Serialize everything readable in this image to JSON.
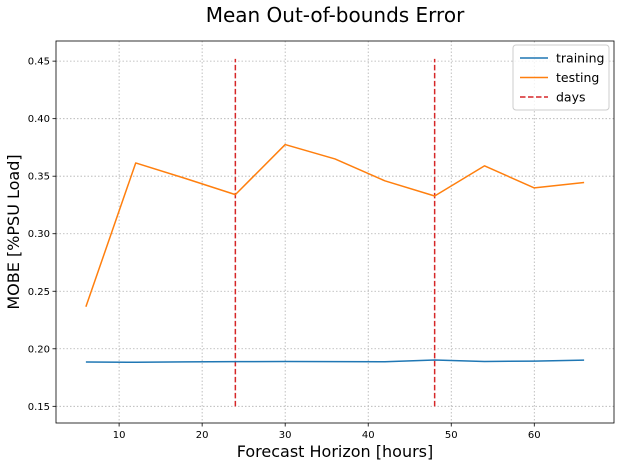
{
  "chart_data": {
    "type": "line",
    "title": "Mean Out-of-bounds Error",
    "xlabel": "Forecast Horizon [hours]",
    "ylabel": "MOBE [%PSU Load]",
    "xlim": [
      2.4,
      69.6
    ],
    "ylim": [
      0.1355,
      0.4675
    ],
    "xticks": [
      10,
      20,
      30,
      40,
      50,
      60
    ],
    "yticks": [
      0.15,
      0.2,
      0.25,
      0.3,
      0.35,
      0.4,
      0.45
    ],
    "grid": true,
    "legend_position": "top-right",
    "x": [
      6,
      12,
      18,
      24,
      30,
      36,
      42,
      48,
      54,
      60,
      66
    ],
    "series": [
      {
        "name": "training",
        "color": "#1f77b4",
        "style": "solid",
        "values": [
          0.1885,
          0.1883,
          0.1886,
          0.1888,
          0.189,
          0.1888,
          0.1887,
          0.1903,
          0.189,
          0.1893,
          0.1901
        ]
      },
      {
        "name": "testing",
        "color": "#ff7f0e",
        "style": "solid",
        "values": [
          0.2365,
          0.3615,
          0.348,
          0.334,
          0.3775,
          0.365,
          0.346,
          0.3328,
          0.359,
          0.3398,
          0.3445
        ]
      }
    ],
    "vlines": {
      "name": "days",
      "color": "#d62728",
      "style": "dashed",
      "x": [
        24,
        48
      ],
      "y_range": [
        0.15,
        0.452
      ]
    }
  }
}
